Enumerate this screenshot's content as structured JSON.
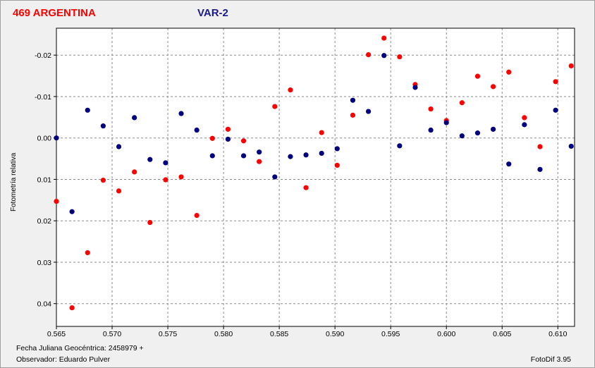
{
  "window": {
    "title_star": "469 ARGENTINA",
    "title_var": "VAR-2",
    "footer_date": "Fecha Juliana Geocéntrica: 2458979 +",
    "footer_observer": "Observador: Eduardo Pulver",
    "footer_software": "FotoDif 3.95"
  },
  "colors": {
    "series_red": "#ff0000",
    "series_blue": "#00007f",
    "grid": "#8a8a8a",
    "plot_bg": "#ffffff",
    "page_bg": "#f0f0f0"
  },
  "chart_data": {
    "type": "scatter",
    "title": "",
    "xlabel": "",
    "ylabel": "Fotometría relativa",
    "xlim": [
      0.565,
      0.6115
    ],
    "ylim": [
      -0.0265,
      0.0455
    ],
    "y_inverted": true,
    "grid": true,
    "x_ticks": [
      "0.565",
      "0.570",
      "0.575",
      "0.580",
      "0.585",
      "0.590",
      "0.595",
      "0.600",
      "0.605",
      "0.610"
    ],
    "x_tick_values": [
      0.565,
      0.57,
      0.575,
      0.58,
      0.585,
      0.59,
      0.595,
      0.6,
      0.605,
      0.61
    ],
    "y_ticks": [
      "-0.02",
      "-0.01",
      "0.00",
      "0.01",
      "0.02",
      "0.03",
      "0.04"
    ],
    "y_tick_values": [
      -0.02,
      -0.01,
      0.0,
      0.01,
      0.02,
      0.03,
      0.04
    ],
    "series": [
      {
        "color": "#ff0000",
        "x": [
          0.565,
          0.5664,
          0.5678,
          0.5692,
          0.5706,
          0.572,
          0.5734,
          0.5748,
          0.5762,
          0.5776,
          0.579,
          0.5804,
          0.5818,
          0.5832,
          0.5846,
          0.586,
          0.5874,
          0.5888,
          0.5902,
          0.5916,
          0.593,
          0.5944,
          0.5958,
          0.5972,
          0.5986,
          0.6,
          0.6014,
          0.6028,
          0.6042,
          0.6056,
          0.607,
          0.6084,
          0.6098,
          0.6112
        ],
        "y": [
          0.0153,
          0.041,
          0.0277,
          0.0102,
          0.0128,
          0.0082,
          0.0204,
          0.0101,
          0.0094,
          0.0187,
          0.0001,
          -0.0021,
          0.0007,
          0.0057,
          -0.0076,
          -0.0116,
          0.012,
          -0.0013,
          0.0066,
          -0.0055,
          -0.0201,
          -0.0241,
          -0.0196,
          -0.0129,
          -0.007,
          -0.0042,
          -0.0085,
          -0.0149,
          -0.0124,
          -0.0159,
          -0.0049,
          0.0021,
          -0.0136,
          -0.0174
        ]
      },
      {
        "color": "#00007f",
        "x": [
          0.565,
          0.5664,
          0.5678,
          0.5692,
          0.5706,
          0.572,
          0.5734,
          0.5748,
          0.5762,
          0.5776,
          0.579,
          0.5804,
          0.5818,
          0.5832,
          0.5846,
          0.586,
          0.5874,
          0.5888,
          0.5902,
          0.5916,
          0.593,
          0.5944,
          0.5958,
          0.5972,
          0.5986,
          0.6,
          0.6014,
          0.6028,
          0.6042,
          0.6056,
          0.607,
          0.6084,
          0.6098,
          0.6112
        ],
        "y": [
          0.0,
          0.0178,
          -0.0067,
          -0.0029,
          0.0021,
          -0.0049,
          0.0052,
          0.006,
          -0.0059,
          -0.0019,
          0.0043,
          0.0003,
          0.0043,
          0.0034,
          0.0094,
          0.0045,
          0.0041,
          0.0037,
          0.0026,
          -0.0091,
          -0.0064,
          -0.0199,
          0.0019,
          -0.0122,
          -0.0019,
          -0.0037,
          -0.0005,
          -0.0012,
          -0.0021,
          0.0063,
          -0.0032,
          0.0076,
          -0.0067,
          0.002
        ]
      }
    ]
  }
}
